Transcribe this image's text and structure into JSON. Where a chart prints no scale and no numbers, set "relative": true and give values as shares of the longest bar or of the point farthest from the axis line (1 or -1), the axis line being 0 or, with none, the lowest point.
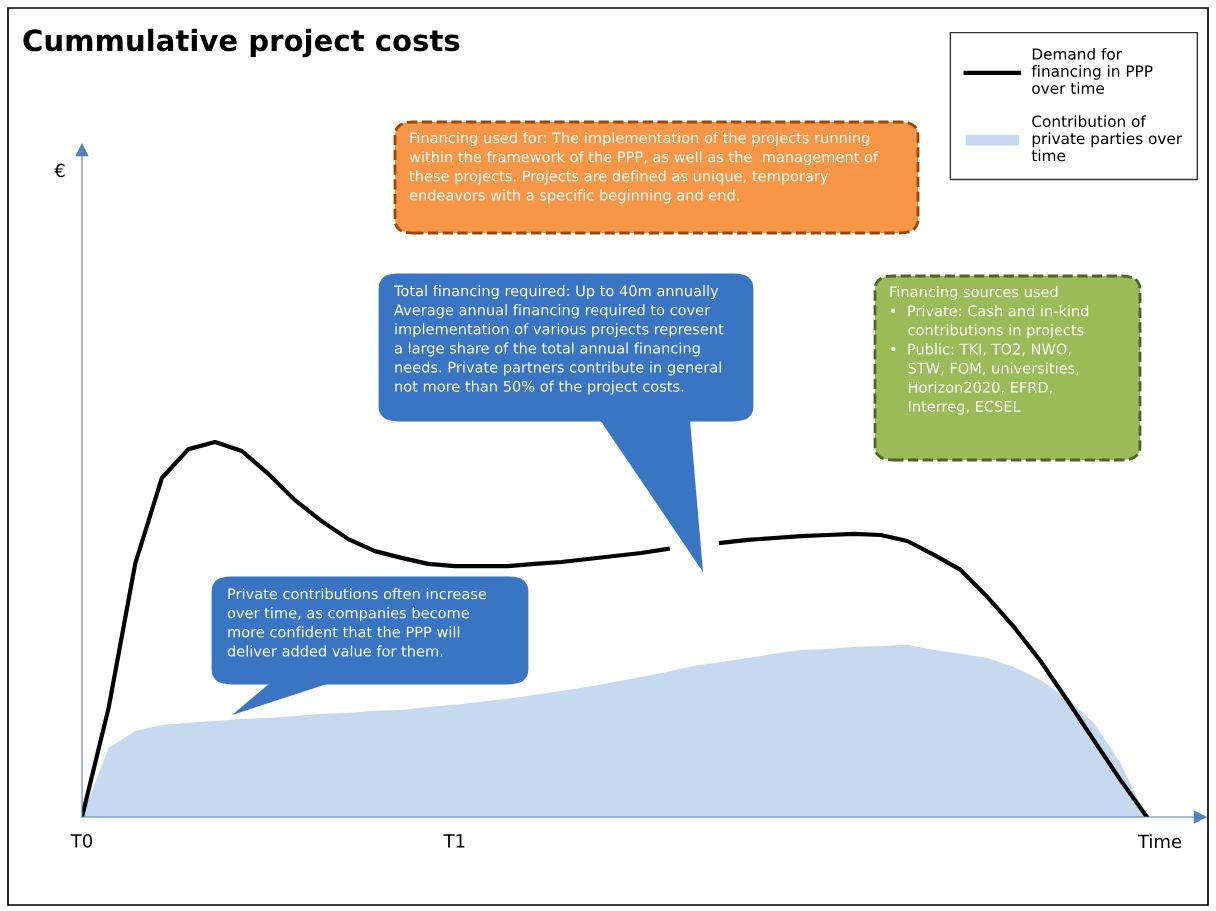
{
  "chart_data": {
    "type": "line",
    "title": "Cummulative project costs",
    "xlabel": "Time",
    "relative": true,
    "categories": [
      "T0",
      null,
      null,
      null,
      null,
      null,
      null,
      null,
      null,
      null,
      null,
      null,
      null,
      null,
      "T1",
      null,
      null,
      null,
      null,
      null,
      null,
      null,
      null,
      null,
      null,
      null,
      null,
      null,
      null,
      null,
      null,
      null,
      null,
      null,
      null,
      null,
      null,
      null,
      null,
      null,
      null
    ],
    "legend": "top right",
    "grid": false,
    "marker": "none",
    "line_style": "solid",
    "series": [
      {
        "name": "Demand for\nfinancing in PPP\nover time",
        "color": "#000000",
        "values": [
          0,
          0.291,
          0.676,
          0.904,
          0.981,
          1,
          0.976,
          0.915,
          0.845,
          0.789,
          0.741,
          0.709,
          0.691,
          0.675,
          0.669,
          0.669,
          0.669,
          0.675,
          0.68,
          0.688,
          0.696,
          0.704,
          0.715,
          null,
          0.731,
          0.739,
          0.744,
          0.749,
          0.752,
          0.755,
          0.752,
          0.736,
          0.699,
          0.659,
          0.587,
          0.507,
          0.416,
          0.312,
          0.205,
          0.099,
          0
        ]
      },
      {
        "name": "Contribution of\nprivate parties over\ntime",
        "type": "area",
        "color": "#c6d9f0",
        "values": [
          0,
          0.184,
          0.229,
          0.245,
          0.251,
          0.256,
          0.261,
          0.264,
          0.269,
          0.275,
          0.277,
          0.283,
          0.285,
          0.293,
          0.299,
          0.307,
          0.315,
          0.325,
          0.336,
          0.347,
          0.36,
          0.373,
          0.387,
          0.403,
          0.413,
          0.424,
          0.435,
          0.445,
          0.448,
          0.453,
          0.456,
          0.459,
          0.445,
          0.435,
          0.424,
          0.4,
          0.365,
          0.315,
          0.251,
          0.144,
          0
        ]
      }
    ],
    "annotations": [
      "Financing used for: The implementation of the projects running\nwithin the framework of the PPP, as well as the  management of\nthese projects. Projects are defined as unique, temporary\nendeavors with a specific beginning and end.",
      "Total financing required: Up to 40m annually\nAverage annual financing required to cover\nimplementation of various projects represent\na large share of the total annual financing\nneeds. Private partners contribute in general\nnot more than 50% of the project costs.",
      "Financing sources used\n•  Private: Cash and in-kind\n    contributions in projects\n•  Public: TKI, TO2, NWO,\n    STW, FOM, universities,\n    Horizon2020, EFRD,\n    Interreg, ECSEL",
      "Private contributions often increase\nover time, as companies become\nmore confident that the PPP will\ndeliver added value for them.",
      "€"
    ]
  }
}
